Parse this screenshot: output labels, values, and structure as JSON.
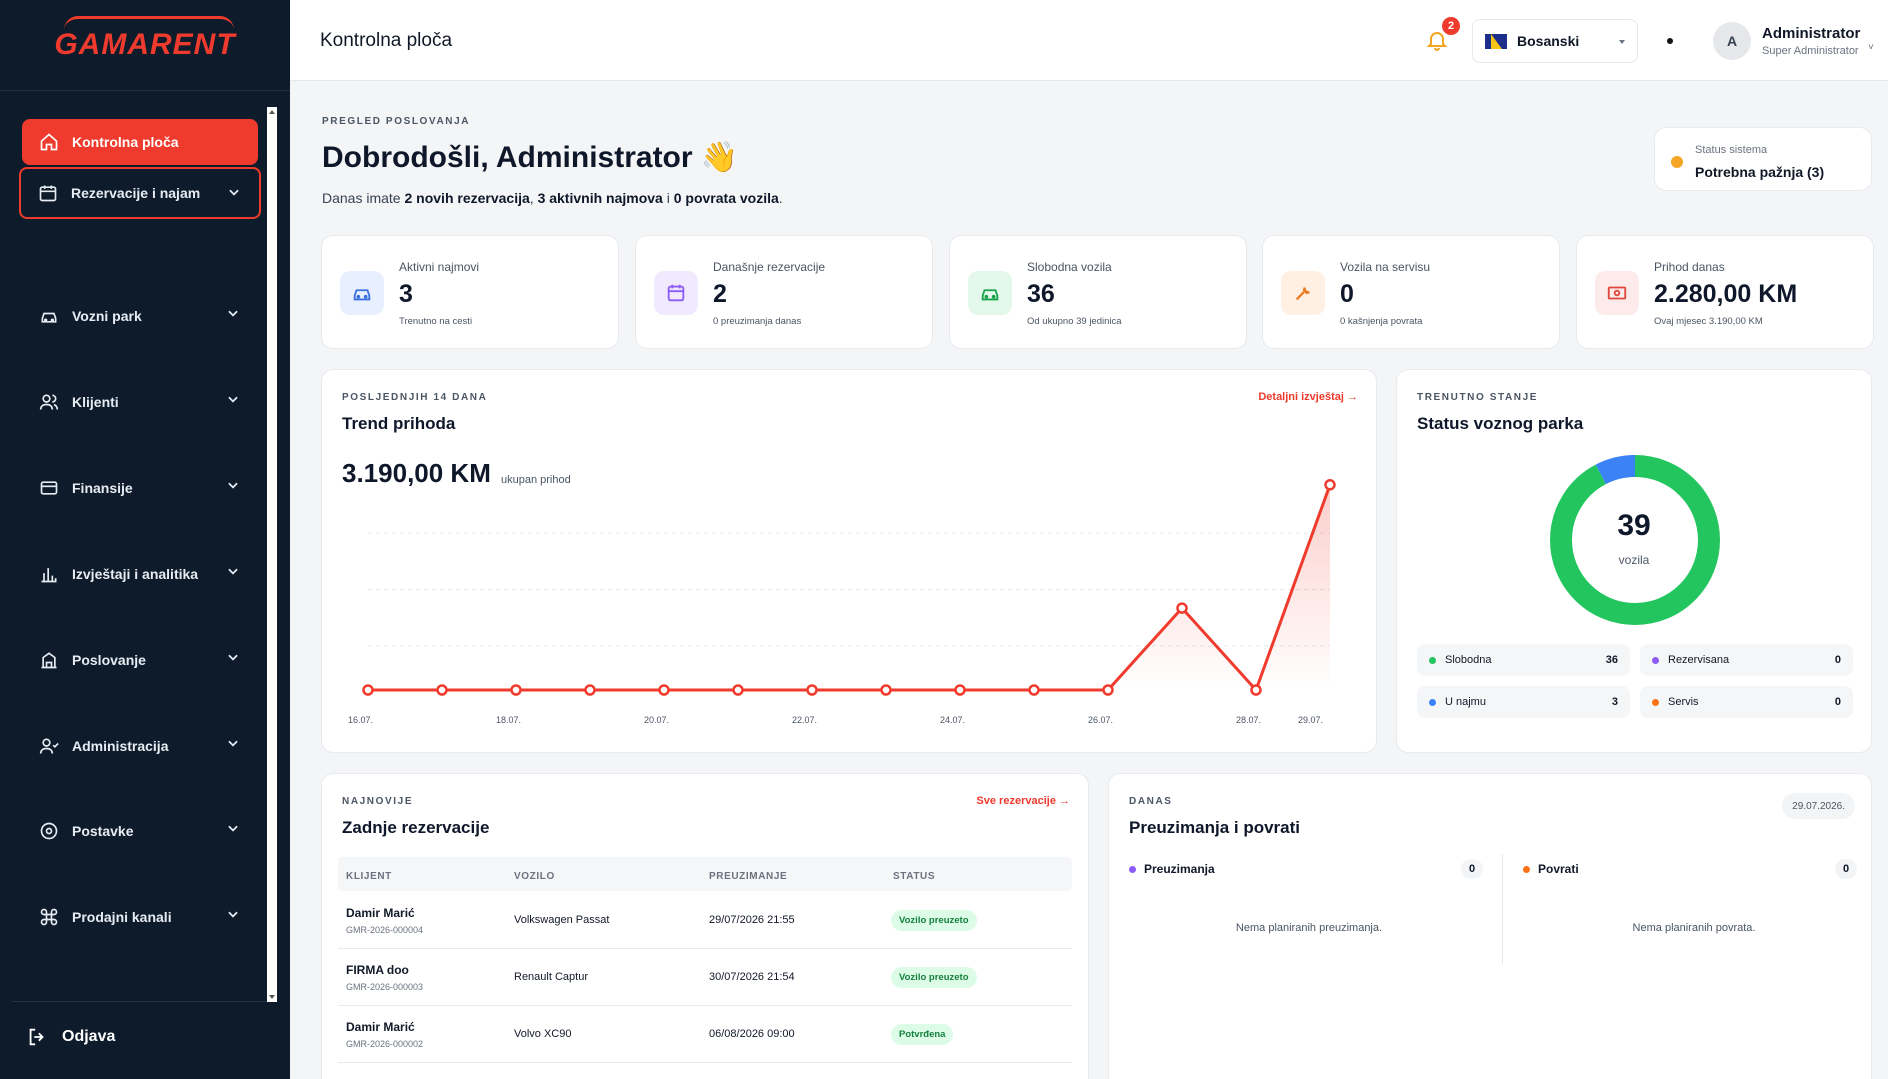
{
  "app": {
    "logo": "GAMARENT"
  },
  "sidebar": {
    "items": [
      {
        "label": "Kontrolna ploča",
        "icon": "home-icon"
      },
      {
        "label": "Rezervacije i najam",
        "icon": "calendar-icon"
      },
      {
        "label": "Vozni park",
        "icon": "car-icon"
      },
      {
        "label": "Klijenti",
        "icon": "users-icon"
      },
      {
        "label": "Finansije",
        "icon": "card-icon"
      },
      {
        "label": "Izvještaji i analitika",
        "icon": "chart-icon"
      },
      {
        "label": "Poslovanje",
        "icon": "building-icon"
      },
      {
        "label": "Administracija",
        "icon": "admin-icon"
      },
      {
        "label": "Postavke",
        "icon": "settings-icon"
      },
      {
        "label": "Prodajni kanali",
        "icon": "command-icon"
      }
    ],
    "logout": "Odjava"
  },
  "topbar": {
    "title": "Kontrolna ploča",
    "notifications": "2",
    "language": "Bosanski",
    "user": {
      "initial": "A",
      "name": "Administrator",
      "role": "Super Administrator"
    }
  },
  "welcome": {
    "eyebrow": "PREGLED POSLOVANJA",
    "title": "Dobrodošli, Administrator 👋",
    "sub_prefix": "Danas imate ",
    "sub_reservations": "2 novih rezervacija",
    "sub_sep1": ", ",
    "sub_rentals": "3 aktivnih najmova",
    "sub_sep2": " i ",
    "sub_returns": "0 povrata vozila",
    "sub_end": "."
  },
  "system_status": {
    "label": "Status sistema",
    "value": "Potrebna pažnja (3)",
    "color": "#f5a524"
  },
  "stats": [
    {
      "label": "Aktivni najmovi",
      "value": "3",
      "sub": "Trenutno na cesti",
      "color": "#3b6fe0",
      "bg": "#e8efff"
    },
    {
      "label": "Današnje rezervacije",
      "value": "2",
      "sub": "0 preuzimanja danas",
      "color": "#8b5cf6",
      "bg": "#f1eafe"
    },
    {
      "label": "Slobodna vozila",
      "value": "36",
      "sub": "Od ukupno 39 jedinica",
      "color": "#16a34a",
      "bg": "#e3f7ea"
    },
    {
      "label": "Vozila na servisu",
      "value": "0",
      "sub": "0 kašnjenja povrata",
      "color": "#ea7a1f",
      "bg": "#fff0e3"
    },
    {
      "label": "Prihod danas",
      "value": "2.280,00 KM",
      "sub": "Ovaj mjesec 3.190,00 KM",
      "color": "#e0463a",
      "bg": "#fdeaea"
    }
  ],
  "trend": {
    "eyebrow": "POSLJEDNJIH 14 DANA",
    "title": "Trend prihoda",
    "link": "Detaljni izvještaj →",
    "total": "3.190,00 KM",
    "total_sub": "ukupan prihod"
  },
  "chart_data": {
    "type": "line",
    "x": [
      "16.07.",
      "17.07.",
      "18.07.",
      "19.07.",
      "20.07.",
      "21.07.",
      "22.07.",
      "23.07.",
      "24.07.",
      "25.07.",
      "26.07.",
      "27.07.",
      "28.07.",
      "29.07."
    ],
    "tick_labels": [
      "16.07.",
      "18.07.",
      "20.07.",
      "22.07.",
      "24.07.",
      "26.07.",
      "28.07.",
      "29.07."
    ],
    "series": [
      {
        "values": [
          0,
          0,
          0,
          0,
          0,
          0,
          0,
          0,
          0,
          0,
          0,
          910,
          0,
          2280
        ]
      }
    ],
    "ylim": [
      0,
      2500
    ],
    "grid": true,
    "color": "#ef3b2d"
  },
  "fleet": {
    "eyebrow": "TRENUTNO STANJE",
    "title": "Status voznog parka",
    "total": "39",
    "total_label": "vozila",
    "legend": [
      {
        "label": "Slobodna",
        "value": 36,
        "color": "#22c55e"
      },
      {
        "label": "Rezervisana",
        "value": 0,
        "color": "#8b5cf6"
      },
      {
        "label": "U najmu",
        "value": 3,
        "color": "#3b82f6"
      },
      {
        "label": "Servis",
        "value": 0,
        "color": "#f97316"
      }
    ]
  },
  "recent": {
    "eyebrow": "NAJNOVIJE",
    "title": "Zadnje rezervacije",
    "link": "Sve rezervacije →",
    "columns": [
      "KLIJENT",
      "VOZILO",
      "PREUZIMANJE",
      "STATUS"
    ],
    "rows": [
      {
        "client": "Damir Marić",
        "code": "GMR-2026-000004",
        "vehicle": "Volkswagen Passat",
        "date": "29/07/2026 21:55",
        "status": "Vozilo preuzeto"
      },
      {
        "client": "FIRMA doo",
        "code": "GMR-2026-000003",
        "vehicle": "Renault Captur",
        "date": "30/07/2026 21:54",
        "status": "Vozilo preuzeto"
      },
      {
        "client": "Damir Marić",
        "code": "GMR-2026-000002",
        "vehicle": "Volvo XC90",
        "date": "06/08/2026 09:00",
        "status": "Potvrđena"
      }
    ]
  },
  "today": {
    "eyebrow": "DANAS",
    "title": "Preuzimanja i povrati",
    "date": "29.07.2026.",
    "pickups_label": "Preuzimanja",
    "pickups_count": "0",
    "pickups_empty": "Nema planiranih preuzimanja.",
    "returns_label": "Povrati",
    "returns_count": "0",
    "returns_empty": "Nema planiranih povrata."
  }
}
